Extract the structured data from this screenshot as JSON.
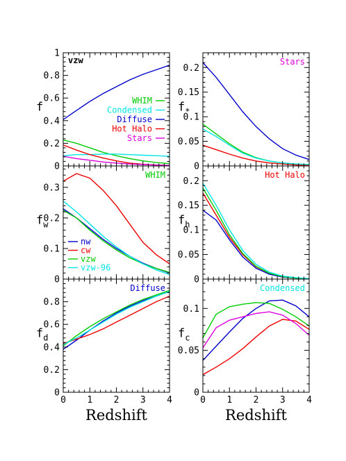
{
  "chart_data": [
    {
      "id": "vzw",
      "type": "line",
      "title": "vzw",
      "title_color": "#000000",
      "ylabel": "f",
      "ysub": "",
      "xlim": [
        0,
        4
      ],
      "ylim": [
        0,
        1
      ],
      "yticks": [
        "0",
        "0.2",
        "0.4",
        "0.6",
        "0.8",
        "1"
      ],
      "xticks": [
        "0",
        "1",
        "2",
        "3",
        "4"
      ],
      "xlabel": "",
      "legend": "right",
      "series": [
        {
          "name": "WHIM",
          "color": "#00cc00",
          "x": [
            0,
            0.5,
            1,
            1.5,
            2,
            2.5,
            3,
            3.5,
            4
          ],
          "y": [
            0.23,
            0.2,
            0.16,
            0.12,
            0.09,
            0.065,
            0.045,
            0.03,
            0.02
          ]
        },
        {
          "name": "Condensed",
          "color": "#00e5e5",
          "x": [
            0,
            0.5,
            1,
            1.5,
            2,
            2.5,
            3,
            3.5,
            4
          ],
          "y": [
            0.09,
            0.1,
            0.1,
            0.105,
            0.105,
            0.1,
            0.095,
            0.09,
            0.085
          ]
        },
        {
          "name": "Diffuse",
          "color": "#0000cc",
          "x": [
            0,
            0.5,
            1,
            1.5,
            2,
            2.5,
            3,
            3.5,
            4
          ],
          "y": [
            0.41,
            0.49,
            0.57,
            0.64,
            0.7,
            0.76,
            0.81,
            0.85,
            0.89
          ]
        },
        {
          "name": "Hot  Halo",
          "color": "#ee0000",
          "x": [
            0,
            0.5,
            1,
            1.5,
            2,
            2.5,
            3,
            3.5,
            4
          ],
          "y": [
            0.185,
            0.14,
            0.1,
            0.07,
            0.045,
            0.025,
            0.015,
            0.008,
            0.005
          ]
        },
        {
          "name": "Stars",
          "color": "#dd00dd",
          "x": [
            0,
            0.5,
            1,
            1.5,
            2,
            2.5,
            3,
            3.5,
            4
          ],
          "y": [
            0.085,
            0.065,
            0.05,
            0.035,
            0.025,
            0.017,
            0.012,
            0.008,
            0.005
          ]
        }
      ]
    },
    {
      "id": "stars",
      "type": "line",
      "title": "Stars",
      "title_color": "#dd00dd",
      "ylabel": "f",
      "ysub": "*",
      "xlim": [
        0,
        4
      ],
      "ylim": [
        0,
        0.23
      ],
      "yticks": [
        "0",
        "0.05",
        "0.1",
        "0.15",
        "0.2"
      ],
      "xticks": [
        "0",
        "1",
        "2",
        "3",
        "4"
      ],
      "xlabel": "",
      "series": [
        {
          "name": "nw",
          "color": "#0000cc",
          "x": [
            0,
            0.5,
            1,
            1.5,
            2,
            2.5,
            3,
            3.5,
            4
          ],
          "y": [
            0.21,
            0.18,
            0.145,
            0.11,
            0.08,
            0.055,
            0.035,
            0.022,
            0.013
          ]
        },
        {
          "name": "cw",
          "color": "#ee0000",
          "x": [
            0,
            0.5,
            1,
            1.5,
            2,
            2.5,
            3,
            3.5,
            4
          ],
          "y": [
            0.042,
            0.033,
            0.024,
            0.016,
            0.01,
            0.006,
            0.004,
            0.002,
            0.001
          ]
        },
        {
          "name": "vzw",
          "color": "#00cc00",
          "x": [
            0,
            0.5,
            1,
            1.5,
            2,
            2.5,
            3,
            3.5,
            4
          ],
          "y": [
            0.085,
            0.065,
            0.045,
            0.028,
            0.017,
            0.01,
            0.006,
            0.004,
            0.003
          ]
        },
        {
          "name": "vzw-96",
          "color": "#00e5e5",
          "x": [
            0,
            0.5,
            1,
            1.5,
            2,
            2.5,
            3,
            3.5,
            4
          ],
          "y": [
            0.075,
            0.06,
            0.042,
            0.026,
            0.016,
            0.01,
            0.006,
            0.004,
            0.003
          ]
        }
      ]
    },
    {
      "id": "whim",
      "type": "line",
      "title": "WHIM",
      "title_color": "#00cc00",
      "ylabel": "f",
      "ysub": "w",
      "xlim": [
        0,
        4
      ],
      "ylim": [
        0,
        0.37
      ],
      "yticks": [
        "0",
        "0.1",
        "0.2",
        "0.3"
      ],
      "xticks": [
        "0",
        "1",
        "2",
        "3",
        "4"
      ],
      "xlabel": "",
      "legend": "left",
      "series": [
        {
          "name": "nw",
          "color": "#0000cc",
          "x": [
            0,
            0.5,
            1,
            1.5,
            2,
            2.5,
            3,
            3.5,
            4
          ],
          "y": [
            0.23,
            0.2,
            0.165,
            0.13,
            0.1,
            0.075,
            0.052,
            0.035,
            0.02
          ]
        },
        {
          "name": "cw",
          "color": "#ee0000",
          "x": [
            0,
            0.5,
            1,
            1.5,
            2,
            2.5,
            3,
            3.5,
            4
          ],
          "y": [
            0.32,
            0.345,
            0.33,
            0.29,
            0.24,
            0.18,
            0.12,
            0.08,
            0.05
          ]
        },
        {
          "name": "vzw",
          "color": "#00cc00",
          "x": [
            0,
            0.5,
            1,
            1.5,
            2,
            2.5,
            3,
            3.5,
            4
          ],
          "y": [
            0.225,
            0.2,
            0.16,
            0.125,
            0.095,
            0.07,
            0.05,
            0.035,
            0.022
          ]
        },
        {
          "name": "vzw-96",
          "color": "#00e5e5",
          "x": [
            0,
            0.5,
            1,
            1.5,
            2,
            2.5,
            3,
            3.5,
            4
          ],
          "y": [
            0.255,
            0.22,
            0.18,
            0.14,
            0.105,
            0.075,
            0.05,
            0.03,
            0.015
          ]
        }
      ]
    },
    {
      "id": "hothalo",
      "type": "line",
      "title": "Hot Halo",
      "title_color": "#ee0000",
      "ylabel": "f",
      "ysub": "h",
      "xlim": [
        0,
        4
      ],
      "ylim": [
        0,
        0.23
      ],
      "yticks": [
        "0",
        "0.05",
        "0.1",
        "0.15",
        "0.2"
      ],
      "xticks": [
        "0",
        "1",
        "2",
        "3",
        "4"
      ],
      "xlabel": "",
      "series": [
        {
          "name": "nw",
          "color": "#0000cc",
          "x": [
            0,
            0.5,
            1,
            1.5,
            2,
            2.5,
            3,
            3.5,
            4
          ],
          "y": [
            0.14,
            0.12,
            0.08,
            0.045,
            0.022,
            0.01,
            0.004,
            0.002,
            0.001
          ]
        },
        {
          "name": "cw",
          "color": "#ee0000",
          "x": [
            0,
            0.5,
            1,
            1.5,
            2,
            2.5,
            3,
            3.5,
            4
          ],
          "y": [
            0.175,
            0.13,
            0.085,
            0.05,
            0.025,
            0.012,
            0.005,
            0.002,
            0.001
          ]
        },
        {
          "name": "vzw",
          "color": "#00cc00",
          "x": [
            0,
            0.5,
            1,
            1.5,
            2,
            2.5,
            3,
            3.5,
            4
          ],
          "y": [
            0.185,
            0.14,
            0.09,
            0.052,
            0.026,
            0.012,
            0.005,
            0.002,
            0.001
          ]
        },
        {
          "name": "vzw-96",
          "color": "#00e5e5",
          "x": [
            0,
            0.5,
            1,
            1.5,
            2,
            2.5,
            3,
            3.5,
            4
          ],
          "y": [
            0.195,
            0.15,
            0.1,
            0.058,
            0.03,
            0.014,
            0.006,
            0.003,
            0.001
          ]
        }
      ]
    },
    {
      "id": "diffuse",
      "type": "line",
      "title": "Diffuse",
      "title_color": "#0000cc",
      "ylabel": "f",
      "ysub": "d",
      "xlim": [
        0,
        4
      ],
      "ylim": [
        0,
        1
      ],
      "yticks": [
        "0",
        "0.2",
        "0.4",
        "0.6",
        "0.8"
      ],
      "xticks": [
        "0",
        "1",
        "2",
        "3",
        "4"
      ],
      "xlabel": "Redshift",
      "series": [
        {
          "name": "nw",
          "color": "#0000cc",
          "x": [
            0,
            0.5,
            1,
            1.5,
            2,
            2.5,
            3,
            3.5,
            4
          ],
          "y": [
            0.38,
            0.46,
            0.55,
            0.63,
            0.7,
            0.76,
            0.81,
            0.85,
            0.89
          ]
        },
        {
          "name": "cw",
          "color": "#ee0000",
          "x": [
            0,
            0.5,
            1,
            1.5,
            2,
            2.5,
            3,
            3.5,
            4
          ],
          "y": [
            0.43,
            0.47,
            0.51,
            0.56,
            0.62,
            0.68,
            0.74,
            0.8,
            0.85
          ]
        },
        {
          "name": "vzw",
          "color": "#00cc00",
          "x": [
            0,
            0.5,
            1,
            1.5,
            2,
            2.5,
            3,
            3.5,
            4
          ],
          "y": [
            0.41,
            0.5,
            0.58,
            0.65,
            0.71,
            0.77,
            0.82,
            0.86,
            0.9
          ]
        },
        {
          "name": "vzw-96",
          "color": "#00e5e5",
          "x": [
            0,
            0.5,
            1,
            1.5,
            2,
            2.5,
            3,
            3.5,
            4
          ],
          "y": [
            0.42,
            0.48,
            0.55,
            0.62,
            0.69,
            0.75,
            0.8,
            0.85,
            0.89
          ]
        }
      ]
    },
    {
      "id": "condensed",
      "type": "line",
      "title": "Condensed",
      "title_color": "#00e5e5",
      "ylabel": "f",
      "ysub": "c",
      "xlim": [
        0,
        4
      ],
      "ylim": [
        0,
        0.135
      ],
      "yticks": [
        "0",
        "0.05",
        "0.1"
      ],
      "xticks": [
        "0",
        "1",
        "2",
        "3",
        "4"
      ],
      "xlabel": "Redshift",
      "series": [
        {
          "name": "nw",
          "color": "#0000cc",
          "x": [
            0,
            0.5,
            1,
            1.5,
            2,
            2.5,
            3,
            3.5,
            4
          ],
          "y": [
            0.038,
            0.055,
            0.072,
            0.088,
            0.1,
            0.109,
            0.11,
            0.103,
            0.09
          ]
        },
        {
          "name": "cw",
          "color": "#ee0000",
          "x": [
            0,
            0.5,
            1,
            1.5,
            2,
            2.5,
            3,
            3.5,
            4
          ],
          "y": [
            0.021,
            0.03,
            0.04,
            0.052,
            0.066,
            0.079,
            0.087,
            0.085,
            0.075
          ]
        },
        {
          "name": "vzw",
          "color": "#00cc00",
          "x": [
            0,
            0.5,
            1,
            1.5,
            2,
            2.5,
            3,
            3.5,
            4
          ],
          "y": [
            0.065,
            0.093,
            0.102,
            0.105,
            0.107,
            0.106,
            0.099,
            0.09,
            0.079
          ]
        },
        {
          "name": "vzw-96",
          "color": "#dd00dd",
          "x": [
            0,
            0.5,
            1,
            1.5,
            2,
            2.5,
            3,
            3.5,
            4
          ],
          "y": [
            0.053,
            0.077,
            0.086,
            0.09,
            0.094,
            0.096,
            0.092,
            0.082,
            0.068
          ]
        }
      ]
    }
  ]
}
